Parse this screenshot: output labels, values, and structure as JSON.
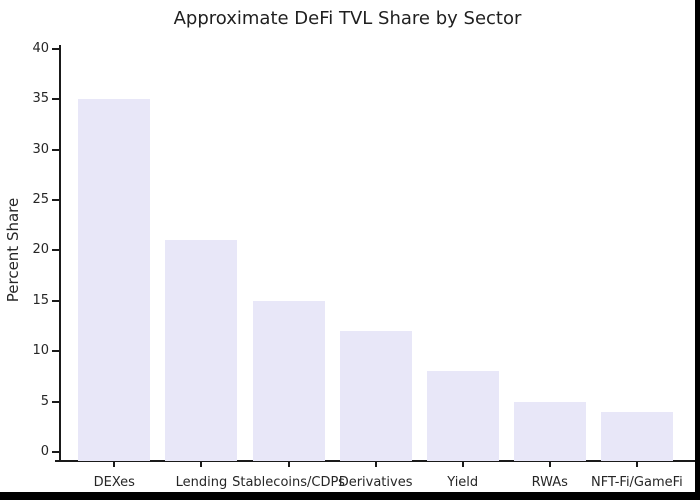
{
  "figure": {
    "title": "Approximate DeFi TVL Share by Sector",
    "background_color": "#ffffff",
    "screen_edge_color": "#000000"
  },
  "chart_data": {
    "type": "bar",
    "title": "Approximate DeFi TVL Share by Sector",
    "categories": [
      "DEXes",
      "Lending",
      "Stablecoins/CDPs",
      "Derivatives",
      "Yield",
      "RWAs",
      "NFT-Fi/GameFi"
    ],
    "values": [
      35,
      21,
      15,
      12,
      8,
      5,
      4
    ],
    "xlabel": "",
    "ylabel": "Percent Share",
    "yticks": [
      0,
      5,
      10,
      15,
      20,
      25,
      30,
      35,
      40
    ],
    "ylim": [
      -0.9,
      40.4
    ],
    "grid": false,
    "legend": null,
    "bar_color": "#e8e7f8",
    "axis_color": "#1a1a1a",
    "text_color": "#262626",
    "spines": [
      "left",
      "bottom"
    ]
  }
}
